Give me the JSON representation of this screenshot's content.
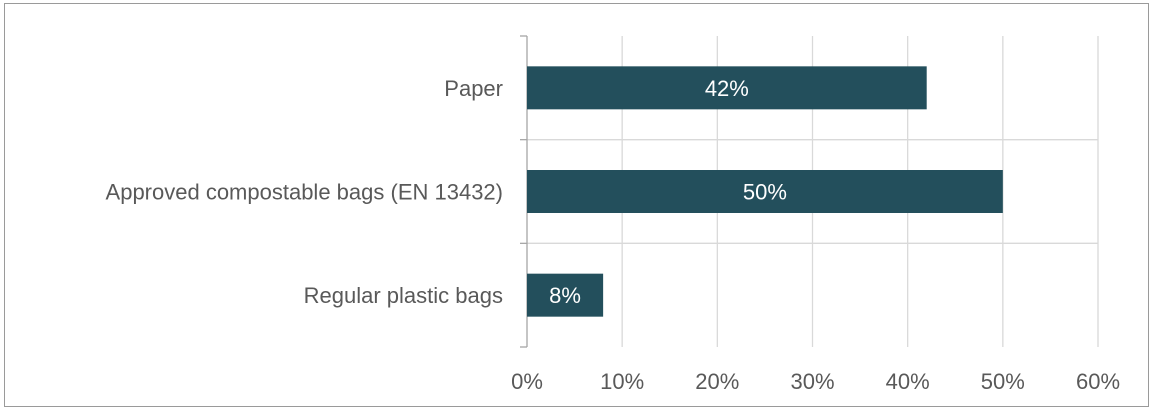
{
  "chart_data": {
    "type": "bar",
    "orientation": "horizontal",
    "categories": [
      "Paper",
      "Approved compostable bags (EN 13432)",
      "Regular plastic bags"
    ],
    "values": [
      42,
      50,
      8
    ],
    "data_labels": [
      "42%",
      "50%",
      "8%"
    ],
    "xlim": [
      0,
      60
    ],
    "x_ticks": [
      0,
      10,
      20,
      30,
      40,
      50,
      60
    ],
    "x_tick_labels": [
      "0%",
      "10%",
      "20%",
      "30%",
      "40%",
      "50%",
      "60%"
    ],
    "title": "",
    "xlabel": "",
    "ylabel": "",
    "grid": true,
    "bar_color": "#234f5c",
    "grid_color": "#d9d9d9",
    "text_color": "#595959"
  }
}
